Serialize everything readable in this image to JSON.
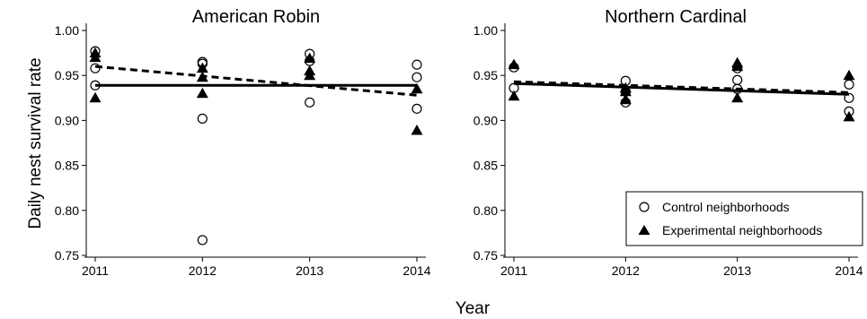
{
  "figure": {
    "ylabel": "Daily nest survival rate",
    "xlabel": "Year"
  },
  "legend": {
    "placement": "bottom-right of second panel",
    "items": [
      {
        "marker": "open-circle",
        "label": "Control neighborhoods"
      },
      {
        "marker": "filled-triangle",
        "label": "Experimental neighborhoods"
      }
    ]
  },
  "chart_data": [
    {
      "type": "scatter",
      "title": "American Robin",
      "xlabel": "Year",
      "ylabel": "Daily nest survival rate",
      "xticks": [
        "2011",
        "2012",
        "2013",
        "2014"
      ],
      "yticks": [
        "0.75",
        "0.80",
        "0.85",
        "0.90",
        "0.95",
        "1.00"
      ],
      "xlim": [
        2011,
        2014
      ],
      "ylim": [
        0.75,
        1.0
      ],
      "grid": false,
      "series": [
        {
          "name": "Control neighborhoods",
          "marker": "open-circle",
          "points": [
            {
              "x": 2011,
              "y": 0.977
            },
            {
              "x": 2011,
              "y": 0.958
            },
            {
              "x": 2011,
              "y": 0.939
            },
            {
              "x": 2012,
              "y": 0.965
            },
            {
              "x": 2012,
              "y": 0.963
            },
            {
              "x": 2012,
              "y": 0.902
            },
            {
              "x": 2012,
              "y": 0.767
            },
            {
              "x": 2013,
              "y": 0.974
            },
            {
              "x": 2013,
              "y": 0.966
            },
            {
              "x": 2013,
              "y": 0.92
            },
            {
              "x": 2014,
              "y": 0.962
            },
            {
              "x": 2014,
              "y": 0.948
            },
            {
              "x": 2014,
              "y": 0.913
            }
          ],
          "trend": {
            "style": "solid",
            "x": [
              2011,
              2014
            ],
            "y": [
              0.939,
              0.939
            ]
          }
        },
        {
          "name": "Experimental neighborhoods",
          "marker": "filled-triangle",
          "points": [
            {
              "x": 2011,
              "y": 0.975
            },
            {
              "x": 2011,
              "y": 0.97
            },
            {
              "x": 2011,
              "y": 0.925
            },
            {
              "x": 2012,
              "y": 0.958
            },
            {
              "x": 2012,
              "y": 0.948
            },
            {
              "x": 2012,
              "y": 0.93
            },
            {
              "x": 2013,
              "y": 0.969
            },
            {
              "x": 2013,
              "y": 0.955
            },
            {
              "x": 2013,
              "y": 0.95
            },
            {
              "x": 2014,
              "y": 0.935
            },
            {
              "x": 2014,
              "y": 0.889
            }
          ],
          "trend": {
            "style": "dashed",
            "x": [
              2011,
              2014
            ],
            "y": [
              0.96,
              0.928
            ]
          }
        }
      ]
    },
    {
      "type": "scatter",
      "title": "Northern Cardinal",
      "xlabel": "Year",
      "ylabel": "Daily nest survival rate",
      "xticks": [
        "2011",
        "2012",
        "2013",
        "2014"
      ],
      "yticks": [
        "0.75",
        "0.80",
        "0.85",
        "0.90",
        "0.95",
        "1.00"
      ],
      "xlim": [
        2011,
        2014
      ],
      "ylim": [
        0.75,
        1.0
      ],
      "grid": false,
      "series": [
        {
          "name": "Control neighborhoods",
          "marker": "open-circle",
          "points": [
            {
              "x": 2011,
              "y": 0.959
            },
            {
              "x": 2011,
              "y": 0.936
            },
            {
              "x": 2012,
              "y": 0.944
            },
            {
              "x": 2012,
              "y": 0.932
            },
            {
              "x": 2012,
              "y": 0.92
            },
            {
              "x": 2013,
              "y": 0.958
            },
            {
              "x": 2013,
              "y": 0.945
            },
            {
              "x": 2013,
              "y": 0.935
            },
            {
              "x": 2014,
              "y": 0.94
            },
            {
              "x": 2014,
              "y": 0.925
            },
            {
              "x": 2014,
              "y": 0.91
            }
          ],
          "trend": {
            "style": "solid",
            "x": [
              2011,
              2014
            ],
            "y": [
              0.941,
              0.929
            ]
          }
        },
        {
          "name": "Experimental neighborhoods",
          "marker": "filled-triangle",
          "points": [
            {
              "x": 2011,
              "y": 0.962
            },
            {
              "x": 2011,
              "y": 0.927
            },
            {
              "x": 2012,
              "y": 0.936
            },
            {
              "x": 2012,
              "y": 0.932
            },
            {
              "x": 2012,
              "y": 0.923
            },
            {
              "x": 2013,
              "y": 0.964
            },
            {
              "x": 2013,
              "y": 0.96
            },
            {
              "x": 2013,
              "y": 0.925
            },
            {
              "x": 2014,
              "y": 0.95
            },
            {
              "x": 2014,
              "y": 0.904
            }
          ],
          "trend": {
            "style": "dashed",
            "x": [
              2011,
              2014
            ],
            "y": [
              0.943,
              0.931
            ]
          }
        }
      ]
    }
  ]
}
